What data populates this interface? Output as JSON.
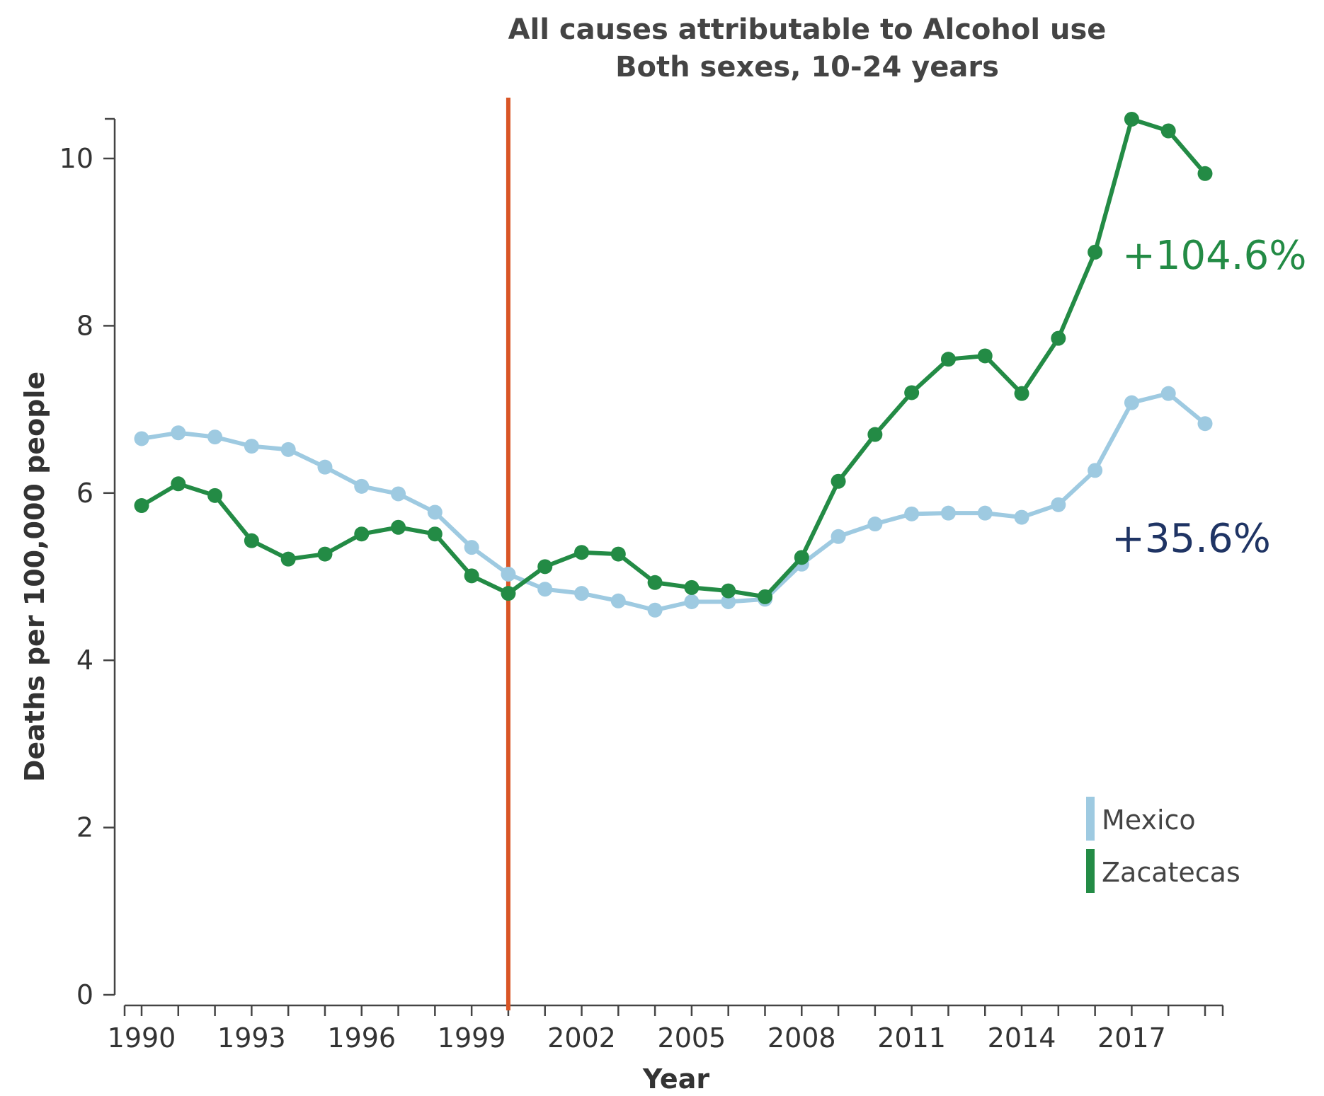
{
  "chart_data": {
    "type": "line",
    "title": "All causes attributable to Alcohol use",
    "subtitle": "Both sexes, 10-24 years",
    "xlabel": "Year",
    "ylabel": "Deaths per 100,000 people",
    "xlim": [
      1990,
      2019
    ],
    "ylim": [
      0,
      10.5
    ],
    "x_ticks": [
      1990,
      1993,
      1996,
      1999,
      2002,
      2005,
      2008,
      2011,
      2014,
      2017
    ],
    "y_ticks": [
      0,
      2,
      4,
      6,
      8,
      10
    ],
    "x": [
      1990,
      1991,
      1992,
      1993,
      1994,
      1995,
      1996,
      1997,
      1998,
      1999,
      2000,
      2001,
      2002,
      2003,
      2004,
      2005,
      2006,
      2007,
      2008,
      2009,
      2010,
      2011,
      2012,
      2013,
      2014,
      2015,
      2016,
      2017,
      2018,
      2019
    ],
    "series": [
      {
        "name": "Mexico",
        "color": "#9ecae1",
        "values": [
          6.65,
          6.72,
          6.67,
          6.56,
          6.52,
          6.31,
          6.08,
          5.99,
          5.77,
          5.35,
          5.03,
          4.85,
          4.8,
          4.71,
          4.6,
          4.7,
          4.7,
          4.73,
          5.15,
          5.48,
          5.63,
          5.75,
          5.76,
          5.76,
          5.71,
          5.86,
          6.27,
          7.08,
          7.19,
          6.83
        ]
      },
      {
        "name": "Zacatecas",
        "color": "#238b45",
        "values": [
          5.85,
          6.11,
          5.97,
          5.43,
          5.21,
          5.27,
          5.51,
          5.59,
          5.51,
          5.01,
          4.8,
          5.12,
          5.29,
          5.27,
          4.93,
          4.87,
          4.83,
          4.76,
          5.23,
          6.14,
          6.7,
          7.2,
          7.6,
          7.64,
          7.19,
          7.85,
          8.88,
          10.47,
          10.33,
          9.82
        ]
      }
    ],
    "reference_line": {
      "x": 2000,
      "color": "#d95525"
    },
    "annotations": [
      {
        "text": "+104.6%",
        "color": "#238b45"
      },
      {
        "text": "+35.6%",
        "color": "#1f3464"
      }
    ],
    "legend_position": "bottom-right",
    "grid": false
  }
}
